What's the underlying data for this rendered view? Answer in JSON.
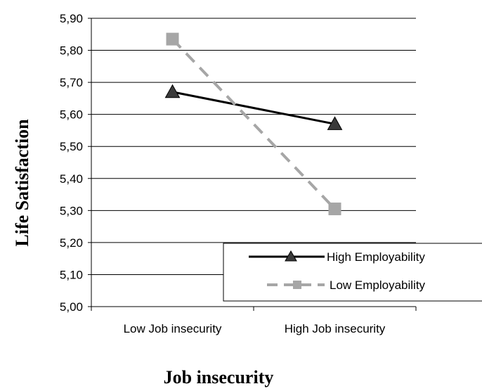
{
  "chart_data": {
    "type": "line",
    "title": "",
    "xlabel": "Job insecurity",
    "ylabel": "Life Satisfaction",
    "categories": [
      "Low  Job insecurity",
      "High Job insecurity"
    ],
    "ylim": [
      5.0,
      5.9
    ],
    "yticks": [
      "5,00",
      "5,10",
      "5,20",
      "5,30",
      "5,40",
      "5,50",
      "5,60",
      "5,70",
      "5,80",
      "5,90"
    ],
    "grid": true,
    "legend_position": "bottom-right",
    "series": [
      {
        "name": "High Employability",
        "values": [
          5.67,
          5.57
        ],
        "color": "#000000",
        "line": "solid",
        "marker": "triangle"
      },
      {
        "name": "Low  Employability",
        "values": [
          5.835,
          5.305
        ],
        "color": "#a6a6a6",
        "line": "dashed",
        "marker": "square"
      }
    ]
  }
}
